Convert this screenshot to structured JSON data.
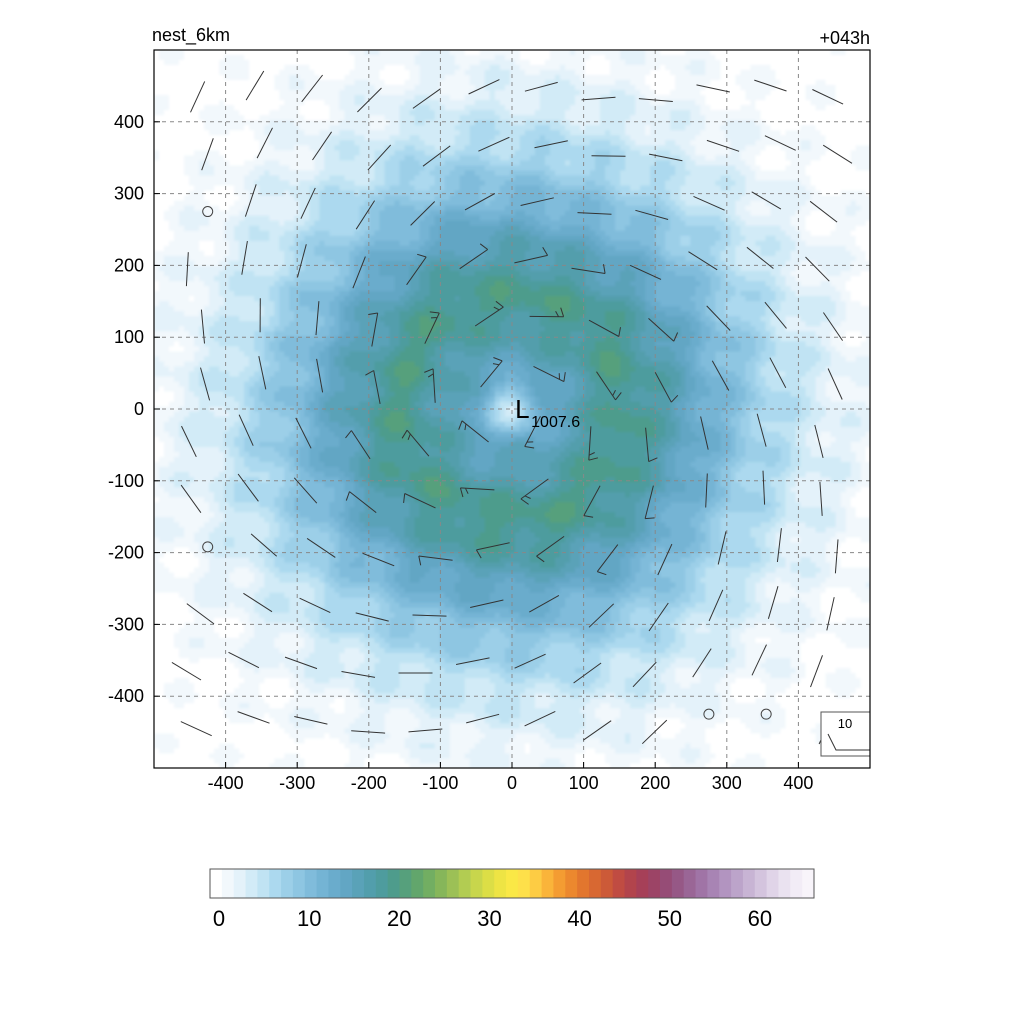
{
  "chart_data": {
    "type": "heatmap",
    "title_left": "nest_6km",
    "title_right": "+043h",
    "xlabel": "",
    "ylabel": "",
    "xlim": [
      -500,
      500
    ],
    "ylim": [
      -500,
      500
    ],
    "x_ticks": [
      -400,
      -300,
      -200,
      -100,
      0,
      100,
      200,
      300,
      400
    ],
    "y_ticks": [
      400,
      300,
      200,
      100,
      0,
      -100,
      -200,
      -300,
      -400
    ],
    "grid": true,
    "field": {
      "center": [
        0,
        0
      ],
      "peak_value": 20,
      "core_value": 3,
      "core_radius": 45,
      "peak_radius": 150,
      "decay_scale": 210
    },
    "low_center": {
      "symbol": "L",
      "x": 10,
      "y": -10,
      "pressure": "1007.6"
    },
    "wind_barbs": {
      "spacing": 80,
      "calm_points": [
        [
          -425,
          275
        ],
        [
          -425,
          -192
        ],
        [
          275,
          -425
        ],
        [
          355,
          -425
        ]
      ]
    },
    "reference_vector": {
      "label": "10"
    },
    "colorbar": {
      "min": 0,
      "max": 66,
      "tick_values": [
        0,
        10,
        20,
        30,
        40,
        50,
        60
      ],
      "tick_labels": [
        "0",
        "10",
        "20",
        "30",
        "40",
        "50",
        "60"
      ],
      "colors": [
        "#ffffff",
        "#f2f8fc",
        "#e4f2fa",
        "#d2ebf7",
        "#c0e3f3",
        "#acd9ef",
        "#9ccfe8",
        "#8ec6e2",
        "#80bcdb",
        "#74b4d4",
        "#6aaccc",
        "#62a6c4",
        "#5aa2b8",
        "#529eac",
        "#4e9c9e",
        "#4e9c8c",
        "#56a07c",
        "#62a66c",
        "#72ae62",
        "#86b65a",
        "#9cc056",
        "#b2cc52",
        "#c8d64c",
        "#dcde46",
        "#eee444",
        "#fae846",
        "#fee04a",
        "#fdcc44",
        "#fab43a",
        "#f49c32",
        "#ec882e",
        "#e2762e",
        "#d86832",
        "#cc5a38",
        "#c04c42",
        "#b2444c",
        "#a64058",
        "#9c4466",
        "#964c76",
        "#965886",
        "#9a6696",
        "#a074a6",
        "#a884b4",
        "#b294c0",
        "#bca4ca",
        "#c8b4d4",
        "#d4c4de",
        "#e0d4e8",
        "#eae2f0",
        "#f2ecf6",
        "#f8f4fa"
      ]
    }
  }
}
